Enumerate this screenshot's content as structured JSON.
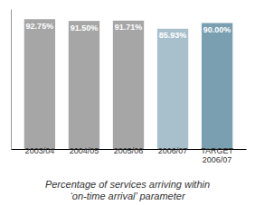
{
  "chart_data": {
    "type": "bar",
    "title": "Percentage of services arriving within\n‘on-time arrival’ parameter",
    "categories": [
      "2003/04",
      "2004/05",
      "2005/06",
      "2006/07",
      "TARGET\n2006/07"
    ],
    "values": [
      92.75,
      91.5,
      91.71,
      85.93,
      90.0
    ],
    "value_labels": [
      "92.75%",
      "91.50%",
      "91.71%",
      "85.93%",
      "90.00%"
    ],
    "colors": [
      "#a6a6a6",
      "#a6a6a6",
      "#a6a6a6",
      "#a8bfcc",
      "#7a9fb0"
    ],
    "ylim": [
      0,
      100
    ],
    "data_labels": true,
    "tick_labels": "x"
  }
}
